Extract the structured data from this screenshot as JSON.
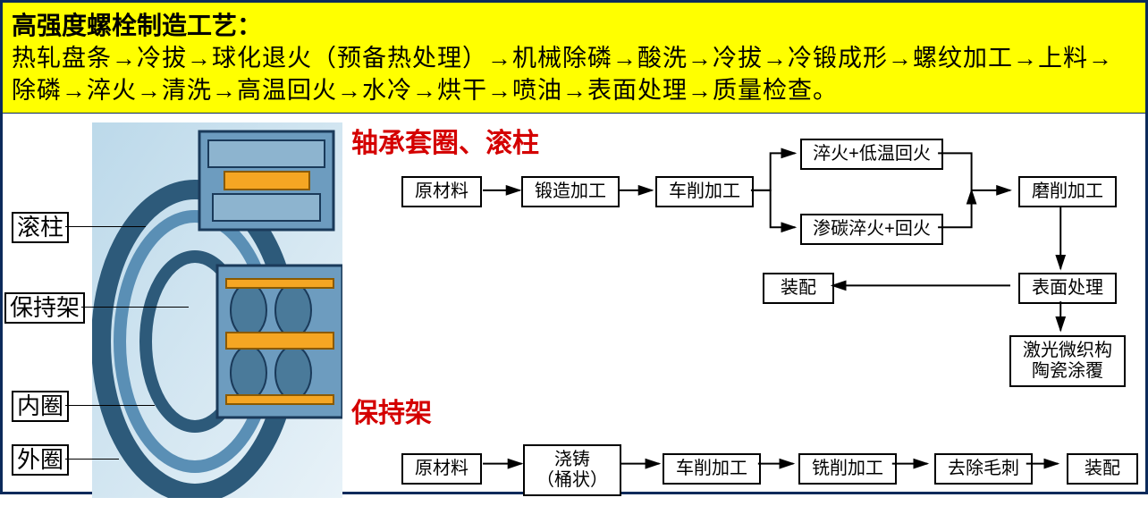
{
  "banner": {
    "title": "高强度螺栓制造工艺：",
    "flow_text": "热轧盘条→冷拔→球化退火（预备热处理）→机械除磷→酸洗→冷拔→冷锻成形→螺纹加工→上料→除磷→淬火→清洗→高温回火→水冷→烘干→喷油→表面处理→质量检查。"
  },
  "bearing_labels": {
    "roller": "滚柱",
    "cage": "保持架",
    "inner_ring": "内圈",
    "outer_ring": "外圈"
  },
  "section_titles": {
    "ring_roller": "轴承套圈、滚柱",
    "cage": "保持架"
  },
  "flow1": {
    "raw": "原材料",
    "forge": "锻造加工",
    "turn": "车削加工",
    "quench_lt": "淬火+低温回火",
    "carburize": "渗碳淬火+回火",
    "grind": "磨削加工",
    "surface": "表面处理",
    "laser": "激光微织构\n陶瓷涂覆",
    "assemble": "装配"
  },
  "flow2": {
    "raw": "原材料",
    "cast": "浇铸\n（桶状）",
    "turn": "车削加工",
    "mill": "铣削加工",
    "deburr": "去除毛刺",
    "assemble": "装配"
  },
  "colors": {
    "frame": "#0b2a5b",
    "banner_bg": "#ffff00",
    "title_red": "#d40000",
    "bearing_blue": "#5a8fb5",
    "bearing_blue_dark": "#2d5a7a",
    "bearing_orange": "#f5a623",
    "bearing_outline": "#1a3a5a"
  }
}
